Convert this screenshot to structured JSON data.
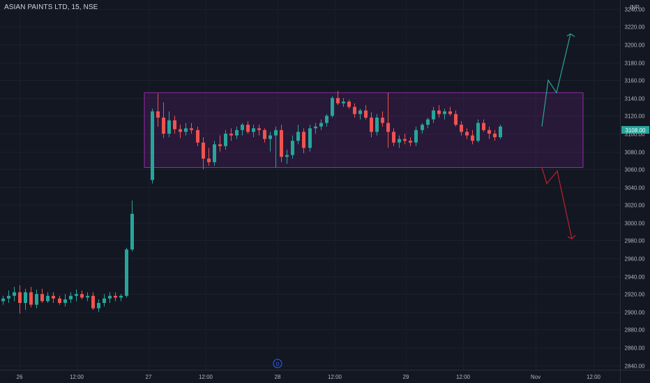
{
  "header": {
    "title": "ASIAN PAINTS LTD, 15, NSE"
  },
  "chart_data": {
    "type": "candlestick",
    "currency": "INR",
    "last_price_label": "3108.00",
    "y_ticks": [
      2840,
      2860,
      2880,
      2900,
      2920,
      2940,
      2960,
      2980,
      3000,
      3020,
      3040,
      3060,
      3080,
      3100,
      3120,
      3140,
      3160,
      3180,
      3200,
      3220,
      3240
    ],
    "ylim": [
      2835,
      3250
    ],
    "x_labels": [
      "26",
      "12:00",
      "27",
      "12:00",
      "28",
      "12:00",
      "29",
      "12:00",
      "Nov",
      "12:00"
    ],
    "dividend_marker": "D",
    "range_box": {
      "top": 3146,
      "bottom": 3062
    },
    "projection_up": [
      3108,
      3160,
      3146,
      3212
    ],
    "projection_down": [
      3062,
      3044,
      3058,
      2982
    ],
    "candles": [
      [
        2912,
        2918,
        2908,
        2915
      ],
      [
        2915,
        2924,
        2910,
        2918
      ],
      [
        2918,
        2928,
        2912,
        2922
      ],
      [
        2922,
        2930,
        2898,
        2910
      ],
      [
        2910,
        2926,
        2902,
        2922
      ],
      [
        2922,
        2928,
        2905,
        2908
      ],
      [
        2908,
        2925,
        2904,
        2920
      ],
      [
        2920,
        2926,
        2910,
        2912
      ],
      [
        2912,
        2922,
        2910,
        2918
      ],
      [
        2918,
        2922,
        2910,
        2915
      ],
      [
        2915,
        2918,
        2908,
        2910
      ],
      [
        2910,
        2920,
        2906,
        2914
      ],
      [
        2914,
        2922,
        2910,
        2918
      ],
      [
        2918,
        2925,
        2912,
        2920
      ],
      [
        2920,
        2924,
        2914,
        2916
      ],
      [
        2916,
        2922,
        2912,
        2918
      ],
      [
        2918,
        2922,
        2902,
        2904
      ],
      [
        2904,
        2914,
        2900,
        2910
      ],
      [
        2910,
        2920,
        2906,
        2915
      ],
      [
        2915,
        2922,
        2910,
        2918
      ],
      [
        2918,
        2922,
        2912,
        2916
      ],
      [
        2916,
        2920,
        2912,
        2918
      ],
      [
        2918,
        2972,
        2916,
        2970
      ],
      [
        2970,
        3025,
        2968,
        3010
      ],
      [
        3048,
        3128,
        3044,
        3125
      ],
      [
        3125,
        3145,
        3108,
        3118
      ],
      [
        3118,
        3135,
        3095,
        3100
      ],
      [
        3100,
        3125,
        3096,
        3115
      ],
      [
        3115,
        3120,
        3100,
        3105
      ],
      [
        3105,
        3110,
        3095,
        3102
      ],
      [
        3102,
        3112,
        3098,
        3106
      ],
      [
        3106,
        3112,
        3100,
        3104
      ],
      [
        3104,
        3108,
        3086,
        3090
      ],
      [
        3090,
        3096,
        3060,
        3072
      ],
      [
        3072,
        3084,
        3064,
        3068
      ],
      [
        3068,
        3092,
        3064,
        3088
      ],
      [
        3088,
        3098,
        3080,
        3086
      ],
      [
        3086,
        3104,
        3082,
        3100
      ],
      [
        3100,
        3106,
        3092,
        3098
      ],
      [
        3098,
        3108,
        3094,
        3104
      ],
      [
        3104,
        3112,
        3098,
        3110
      ],
      [
        3110,
        3114,
        3100,
        3102
      ],
      [
        3102,
        3110,
        3096,
        3106
      ],
      [
        3106,
        3110,
        3098,
        3104
      ],
      [
        3104,
        3106,
        3090,
        3094
      ],
      [
        3094,
        3102,
        3080,
        3098
      ],
      [
        3098,
        3108,
        3062,
        3104
      ],
      [
        3104,
        3110,
        3068,
        3074
      ],
      [
        3074,
        3082,
        3066,
        3076
      ],
      [
        3076,
        3098,
        3072,
        3092
      ],
      [
        3092,
        3110,
        3088,
        3102
      ],
      [
        3102,
        3106,
        3078,
        3084
      ],
      [
        3084,
        3110,
        3080,
        3106
      ],
      [
        3106,
        3112,
        3100,
        3108
      ],
      [
        3108,
        3116,
        3104,
        3112
      ],
      [
        3112,
        3122,
        3108,
        3120
      ],
      [
        3120,
        3142,
        3118,
        3140
      ],
      [
        3140,
        3148,
        3132,
        3134
      ],
      [
        3134,
        3140,
        3130,
        3136
      ],
      [
        3136,
        3138,
        3128,
        3130
      ],
      [
        3130,
        3134,
        3118,
        3122
      ],
      [
        3122,
        3128,
        3116,
        3126
      ],
      [
        3126,
        3132,
        3116,
        3118
      ],
      [
        3118,
        3124,
        3096,
        3102
      ],
      [
        3102,
        3122,
        3098,
        3118
      ],
      [
        3118,
        3125,
        3108,
        3112
      ],
      [
        3112,
        3146,
        3084,
        3102
      ],
      [
        3102,
        3106,
        3086,
        3090
      ],
      [
        3090,
        3098,
        3084,
        3094
      ],
      [
        3094,
        3100,
        3088,
        3092
      ],
      [
        3092,
        3096,
        3086,
        3090
      ],
      [
        3090,
        3108,
        3086,
        3104
      ],
      [
        3104,
        3112,
        3100,
        3110
      ],
      [
        3110,
        3118,
        3106,
        3116
      ],
      [
        3116,
        3130,
        3112,
        3126
      ],
      [
        3126,
        3132,
        3118,
        3122
      ],
      [
        3122,
        3128,
        3116,
        3125
      ],
      [
        3125,
        3130,
        3120,
        3122
      ],
      [
        3122,
        3126,
        3108,
        3110
      ],
      [
        3110,
        3114,
        3098,
        3102
      ],
      [
        3102,
        3106,
        3094,
        3098
      ],
      [
        3098,
        3104,
        3088,
        3092
      ],
      [
        3092,
        3116,
        3090,
        3112
      ],
      [
        3112,
        3116,
        3102,
        3104
      ],
      [
        3104,
        3108,
        3094,
        3100
      ],
      [
        3100,
        3104,
        3092,
        3096
      ],
      [
        3096,
        3110,
        3094,
        3108
      ]
    ]
  }
}
